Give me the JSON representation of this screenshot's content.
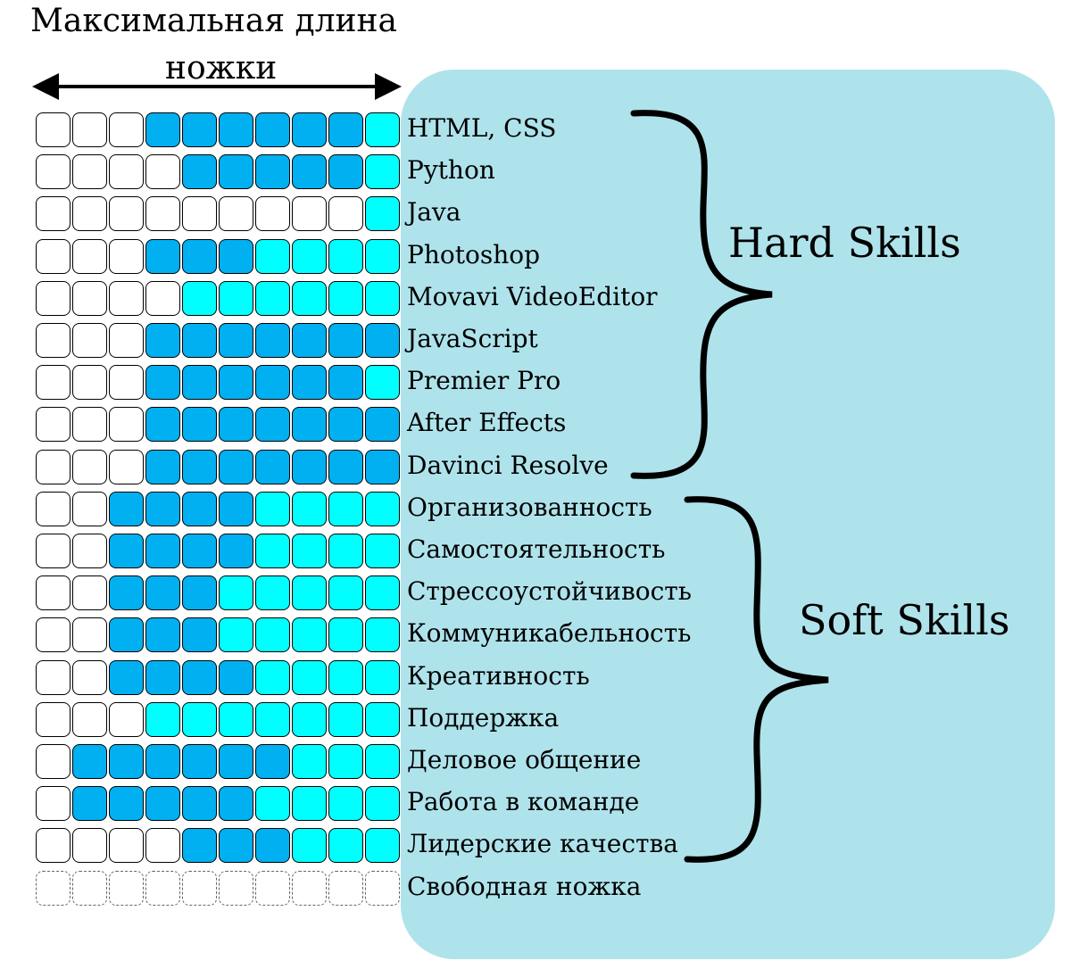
{
  "header": {
    "line1": "Максимальная длина",
    "line2": "ножки"
  },
  "colors": {
    "panel": "#afe3ec",
    "empty": "#ffffff",
    "blue": "#00b0f0",
    "cyan": "#00ffff"
  },
  "skills": [
    {
      "label": "HTML, CSS",
      "cells": [
        0,
        0,
        0,
        1,
        1,
        1,
        1,
        1,
        1,
        2
      ]
    },
    {
      "label": "Python",
      "cells": [
        0,
        0,
        0,
        0,
        1,
        1,
        1,
        1,
        1,
        2
      ]
    },
    {
      "label": "Java",
      "cells": [
        0,
        0,
        0,
        0,
        0,
        0,
        0,
        0,
        0,
        2
      ]
    },
    {
      "label": "Photoshop",
      "cells": [
        0,
        0,
        0,
        1,
        1,
        1,
        2,
        2,
        2,
        2
      ]
    },
    {
      "label": "Movavi VideoEditor",
      "cells": [
        0,
        0,
        0,
        0,
        2,
        2,
        2,
        2,
        2,
        2
      ]
    },
    {
      "label": "JavaScript",
      "cells": [
        0,
        0,
        0,
        1,
        1,
        1,
        1,
        1,
        1,
        1
      ]
    },
    {
      "label": "Premier Pro",
      "cells": [
        0,
        0,
        0,
        1,
        1,
        1,
        1,
        1,
        1,
        2
      ]
    },
    {
      "label": "After Effects",
      "cells": [
        0,
        0,
        0,
        1,
        1,
        1,
        1,
        1,
        1,
        1
      ]
    },
    {
      "label": "Davinci Resolve",
      "cells": [
        0,
        0,
        0,
        1,
        1,
        1,
        1,
        1,
        1,
        1
      ]
    },
    {
      "label": "Организованность",
      "cells": [
        0,
        0,
        1,
        1,
        1,
        1,
        2,
        2,
        2,
        2
      ]
    },
    {
      "label": "Самостоятельность",
      "cells": [
        0,
        0,
        1,
        1,
        1,
        1,
        2,
        2,
        2,
        2
      ]
    },
    {
      "label": "Стрессоустойчивость",
      "cells": [
        0,
        0,
        1,
        1,
        1,
        2,
        2,
        2,
        2,
        2
      ]
    },
    {
      "label": "Коммуникабельность",
      "cells": [
        0,
        0,
        1,
        1,
        1,
        2,
        2,
        2,
        2,
        2
      ]
    },
    {
      "label": "Креативность",
      "cells": [
        0,
        0,
        1,
        1,
        1,
        1,
        2,
        2,
        2,
        2
      ]
    },
    {
      "label": "Поддержка",
      "cells": [
        0,
        0,
        0,
        2,
        2,
        2,
        2,
        2,
        2,
        2
      ]
    },
    {
      "label": "Деловое общение",
      "cells": [
        0,
        1,
        1,
        1,
        1,
        1,
        1,
        2,
        2,
        2
      ]
    },
    {
      "label": "Работа в команде",
      "cells": [
        0,
        1,
        1,
        1,
        1,
        1,
        2,
        2,
        2,
        2
      ]
    },
    {
      "label": "Лидерские качества",
      "cells": [
        0,
        0,
        0,
        0,
        1,
        1,
        1,
        2,
        2,
        2
      ]
    },
    {
      "label": "Свободная ножка",
      "cells": [
        3,
        3,
        3,
        3,
        3,
        3,
        3,
        3,
        3,
        3
      ]
    }
  ],
  "groups": [
    {
      "label": "Hard Skills"
    },
    {
      "label": "Soft Skills"
    }
  ]
}
